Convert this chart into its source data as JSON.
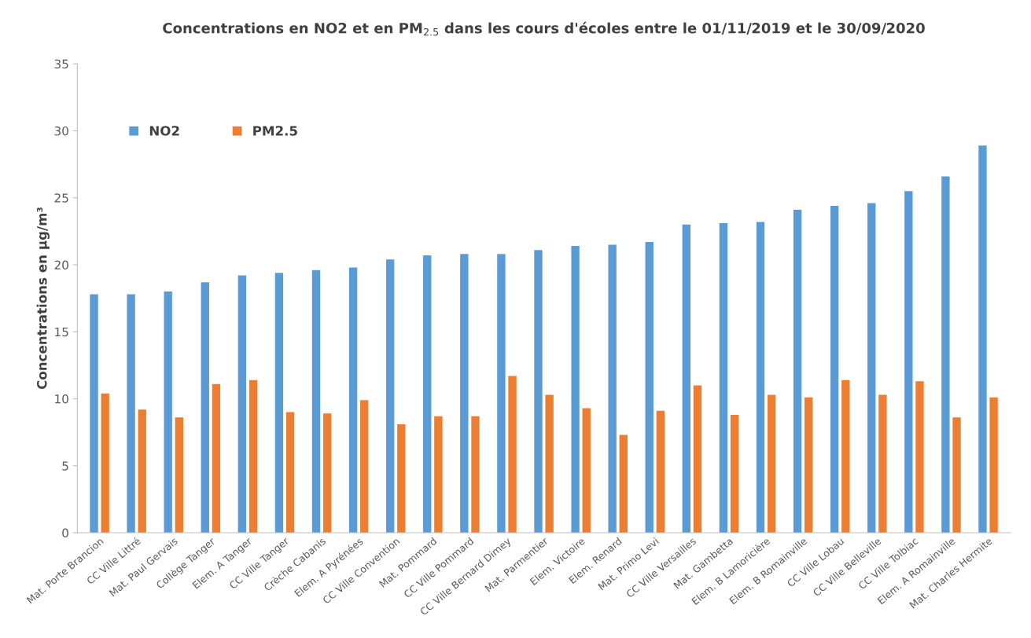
{
  "chart_data": {
    "type": "bar",
    "title": "Concentrations en NO2 et en PM$_{2.5}$ dans les cours d'écoles entre le 01/11/2019 et le 30/09/2020",
    "ylabel": "Concentrations en µg/m³",
    "categories": [
      "Mat. Porte Brancion",
      "CC Ville Littré",
      "Mat. Paul Gervais",
      "Collège Tanger",
      "Elem. A Tanger",
      "CC Ville Tanger",
      "Crèche Cabanis",
      "Elem. A Pyrénées",
      "CC Ville Convention",
      "Mat. Pommard",
      "CC Ville Pommard",
      "CC Ville Bernard Dimey",
      "Mat. Parmentier",
      "Elem. Victoire",
      "Elem. Renard",
      "Mat. Primo Levi",
      "CC Ville Versailles",
      "Mat. Gambetta",
      "Elem. B Lamoricière",
      "Elem. B Romainville",
      "CC Ville Lobau",
      "CC Ville Belleville",
      "CC Ville Tolbiac",
      "Elem. A Romainville",
      "Mat. Charles Hermite"
    ],
    "series": [
      {
        "name": "NO2",
        "color": "#5b9bd5",
        "values": [
          17.8,
          17.8,
          18.0,
          18.7,
          19.2,
          19.4,
          19.6,
          19.8,
          20.4,
          20.7,
          20.8,
          20.8,
          21.1,
          21.4,
          21.5,
          21.7,
          23.0,
          23.1,
          23.2,
          24.1,
          24.4,
          24.6,
          25.5,
          26.6,
          28.9
        ]
      },
      {
        "name": "PM2.5",
        "color": "#ed7d31",
        "values": [
          10.4,
          9.2,
          8.6,
          11.1,
          11.4,
          9.0,
          8.9,
          9.9,
          8.1,
          8.7,
          8.7,
          11.7,
          10.3,
          9.3,
          7.3,
          9.1,
          11.0,
          8.8,
          10.3,
          10.1,
          11.4,
          10.3,
          11.3,
          8.6,
          10.1
        ]
      }
    ],
    "ylim": [
      0,
      35
    ],
    "yticks": [
      0,
      5,
      10,
      15,
      20,
      25,
      30,
      35
    ],
    "grid": false,
    "legend": "top left"
  }
}
